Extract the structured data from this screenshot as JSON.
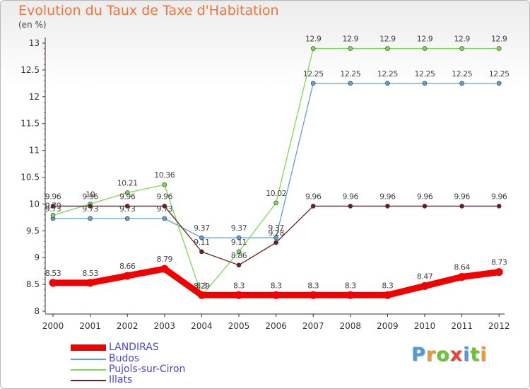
{
  "title": "Evolution du Taux de Taxe d'Habitation",
  "unit_label": "(en %)",
  "brand": "Proxiti",
  "brand_colors": [
    "#4c9cdf",
    "#f09a27",
    "#6dc238",
    "#e5423a",
    "#4c9cdf",
    "#6dc238",
    "#f09a27"
  ],
  "chart_data": {
    "type": "line",
    "title": "Evolution du Taux de Taxe d'Habitation",
    "xlabel": "",
    "ylabel": "(en %)",
    "categories": [
      "2000",
      "2001",
      "2002",
      "2003",
      "2004",
      "2005",
      "2006",
      "2007",
      "2008",
      "2009",
      "2010",
      "2011",
      "2012"
    ],
    "ylim": [
      8,
      13
    ],
    "yticks": [
      "8",
      "8.5",
      "9",
      "9.5",
      "10",
      "10.5",
      "11",
      "11.5",
      "12",
      "12.5",
      "13"
    ],
    "grid": false,
    "legend_position": "bottom-left",
    "series": [
      {
        "name": "LANDIRAS",
        "color": "#f20000",
        "width": 9,
        "values": [
          8.53,
          8.53,
          8.66,
          8.79,
          8.3,
          8.3,
          8.3,
          8.3,
          8.3,
          8.3,
          8.47,
          8.64,
          8.73
        ],
        "labels": [
          "8.53",
          "8.53",
          "8.66",
          "8.79",
          "8.3",
          "8.3",
          "8.3",
          "8.3",
          "8.3",
          "8.3",
          "8.47",
          "8.64",
          "8.73"
        ]
      },
      {
        "name": "Budos",
        "color": "#5f9fd2",
        "width": 1.3,
        "values": [
          9.73,
          9.73,
          9.73,
          9.73,
          9.37,
          9.37,
          9.37,
          12.25,
          12.25,
          12.25,
          12.25,
          12.25,
          12.25
        ],
        "labels": [
          "9.73",
          "9.73",
          "9.73",
          "9.73",
          "9.37",
          "9.37",
          "9.37",
          "12.25",
          "12.25",
          "12.25",
          "12.25",
          "12.25",
          "12.25"
        ]
      },
      {
        "name": "Pujols-sur-Ciron",
        "color": "#7ed957",
        "width": 1.3,
        "values": [
          9.79,
          10,
          10.21,
          10.36,
          8.29,
          9.11,
          10.02,
          12.9,
          12.9,
          12.9,
          12.9,
          12.9,
          12.9
        ],
        "labels": [
          "9.79",
          "10",
          "10.21",
          "10.36",
          "8.29",
          "9.11",
          "10.02",
          "12.9",
          "12.9",
          "12.9",
          "12.9",
          "12.9",
          "12.9"
        ]
      },
      {
        "name": "Illats",
        "color": "#6b1f1f",
        "width": 1.3,
        "values": [
          9.96,
          9.96,
          9.96,
          9.96,
          9.11,
          8.86,
          9.28,
          9.96,
          9.96,
          9.96,
          9.96,
          9.96,
          9.96
        ],
        "labels": [
          "9.96",
          "9.96",
          "9.96",
          "9.96",
          "9.11",
          "8.86",
          "9.28",
          "9.96",
          "9.96",
          "9.96",
          "9.96",
          "9.96",
          "9.96"
        ]
      }
    ]
  }
}
